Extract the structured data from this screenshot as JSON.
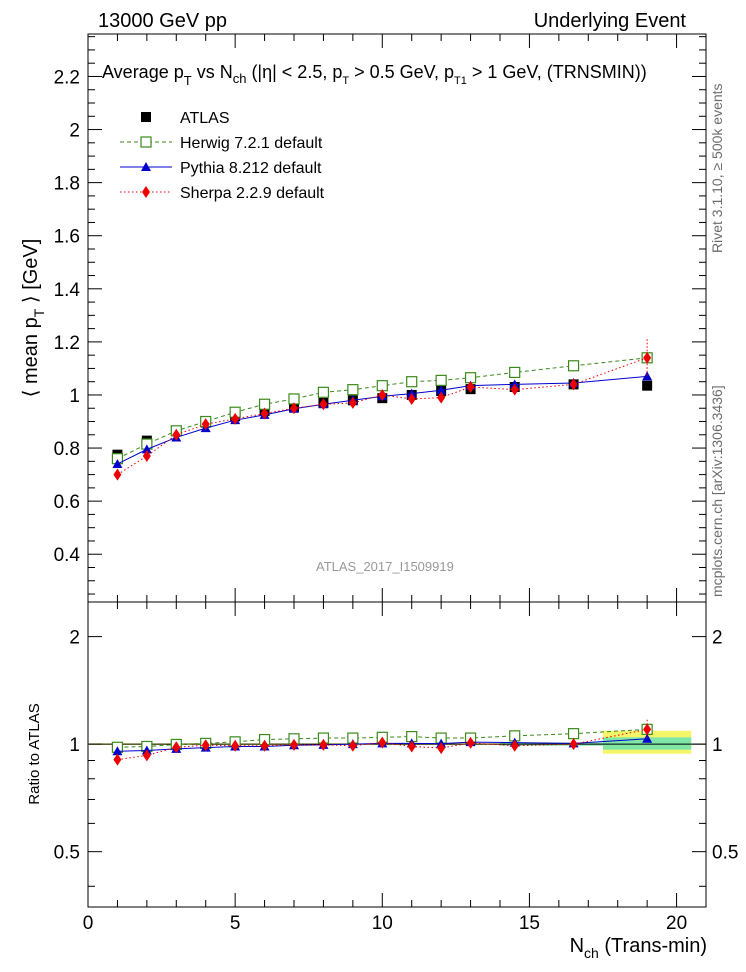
{
  "header": {
    "left": "13000 GeV pp",
    "right": "Underlying Event"
  },
  "side_labels": {
    "rivet": "Rivet 3.1.10, ≥ 500k events",
    "mcplots": "mcplots.cern.ch [arXiv:1306.3436]"
  },
  "chart_data": [
    {
      "type": "scatter",
      "title": "Average p_T vs N_ch (|η| < 2.5, p_T > 0.5 GeV, p_T1 > 1 GeV, (TRNSMIN))",
      "ylabel": "⟨ mean p_T ⟩ [GeV]",
      "watermark": "ATLAS_2017_I1509919",
      "xlim": [
        0,
        21
      ],
      "ylim": [
        0.22,
        2.36
      ],
      "y_ticks": [
        "0.4",
        "0.6",
        "0.8",
        "1",
        "1.2",
        "1.4",
        "1.6",
        "1.8",
        "2",
        "2.2"
      ],
      "legend_position": "top-left",
      "x": [
        1,
        2,
        3,
        4,
        5,
        6,
        7,
        8,
        9,
        10,
        11,
        12,
        13,
        14.5,
        16.5,
        19
      ],
      "series": [
        {
          "name": "ATLAS",
          "color": "#000000",
          "marker": "square-filled",
          "values": [
            0.775,
            0.828,
            0.866,
            0.896,
            0.92,
            0.94,
            0.955,
            0.97,
            0.98,
            0.988,
            1.0,
            1.015,
            1.022,
            1.03,
            1.04,
            1.035
          ]
        },
        {
          "name": "Herwig 7.2.1 default",
          "color": "#3a8a1a",
          "marker": "square-open",
          "line": "dashed",
          "values": [
            0.76,
            0.815,
            0.865,
            0.9,
            0.935,
            0.965,
            0.985,
            1.01,
            1.02,
            1.035,
            1.05,
            1.055,
            1.065,
            1.085,
            1.11,
            1.14
          ]
        },
        {
          "name": "Pythia 8.212 default",
          "color": "#0000cc",
          "marker": "triangle",
          "line": "solid",
          "values": [
            0.74,
            0.795,
            0.84,
            0.875,
            0.905,
            0.925,
            0.948,
            0.965,
            0.98,
            0.995,
            1.005,
            1.018,
            1.035,
            1.04,
            1.045,
            1.07
          ]
        },
        {
          "name": "Sherpa 2.2.9 default",
          "color": "#ee0000",
          "marker": "diamond",
          "line": "dotted",
          "values": [
            0.7,
            0.77,
            0.85,
            0.89,
            0.91,
            0.93,
            0.95,
            0.965,
            0.97,
            1.0,
            0.985,
            0.99,
            1.03,
            1.02,
            1.04,
            1.14
          ]
        }
      ]
    },
    {
      "type": "scatter",
      "title": "",
      "ylabel": "Ratio to ATLAS",
      "xlabel": "N_ch (Trans-min)",
      "xlim": [
        0,
        21
      ],
      "ylim": [
        0.35,
        2.5
      ],
      "y_scale": "log",
      "y_ticks": [
        "0.5",
        "1",
        "2"
      ],
      "x_ticks": [
        "0",
        "5",
        "10",
        "15",
        "20"
      ],
      "x": [
        1,
        2,
        3,
        4,
        5,
        6,
        7,
        8,
        9,
        10,
        11,
        12,
        13,
        14.5,
        16.5,
        19
      ],
      "series": [
        {
          "name": "Herwig 7.2.1 default",
          "color": "#3a8a1a",
          "marker": "square-open",
          "line": "dashed",
          "values": [
            0.98,
            0.985,
            0.998,
            1.005,
            1.015,
            1.03,
            1.035,
            1.04,
            1.04,
            1.045,
            1.05,
            1.04,
            1.04,
            1.055,
            1.07,
            1.1
          ]
        },
        {
          "name": "Pythia 8.212 default",
          "color": "#0000cc",
          "marker": "triangle",
          "line": "solid",
          "values": [
            0.955,
            0.96,
            0.97,
            0.978,
            0.985,
            0.985,
            0.993,
            0.995,
            1.0,
            1.005,
            1.005,
            1.003,
            1.013,
            1.01,
            1.005,
            1.035
          ]
        },
        {
          "name": "Sherpa 2.2.9 default",
          "color": "#ee0000",
          "marker": "diamond",
          "line": "dotted",
          "values": [
            0.905,
            0.93,
            0.98,
            0.993,
            0.99,
            0.99,
            0.995,
            0.995,
            0.99,
            1.01,
            0.985,
            0.975,
            1.008,
            0.99,
            1.0,
            1.1
          ]
        }
      ]
    }
  ]
}
